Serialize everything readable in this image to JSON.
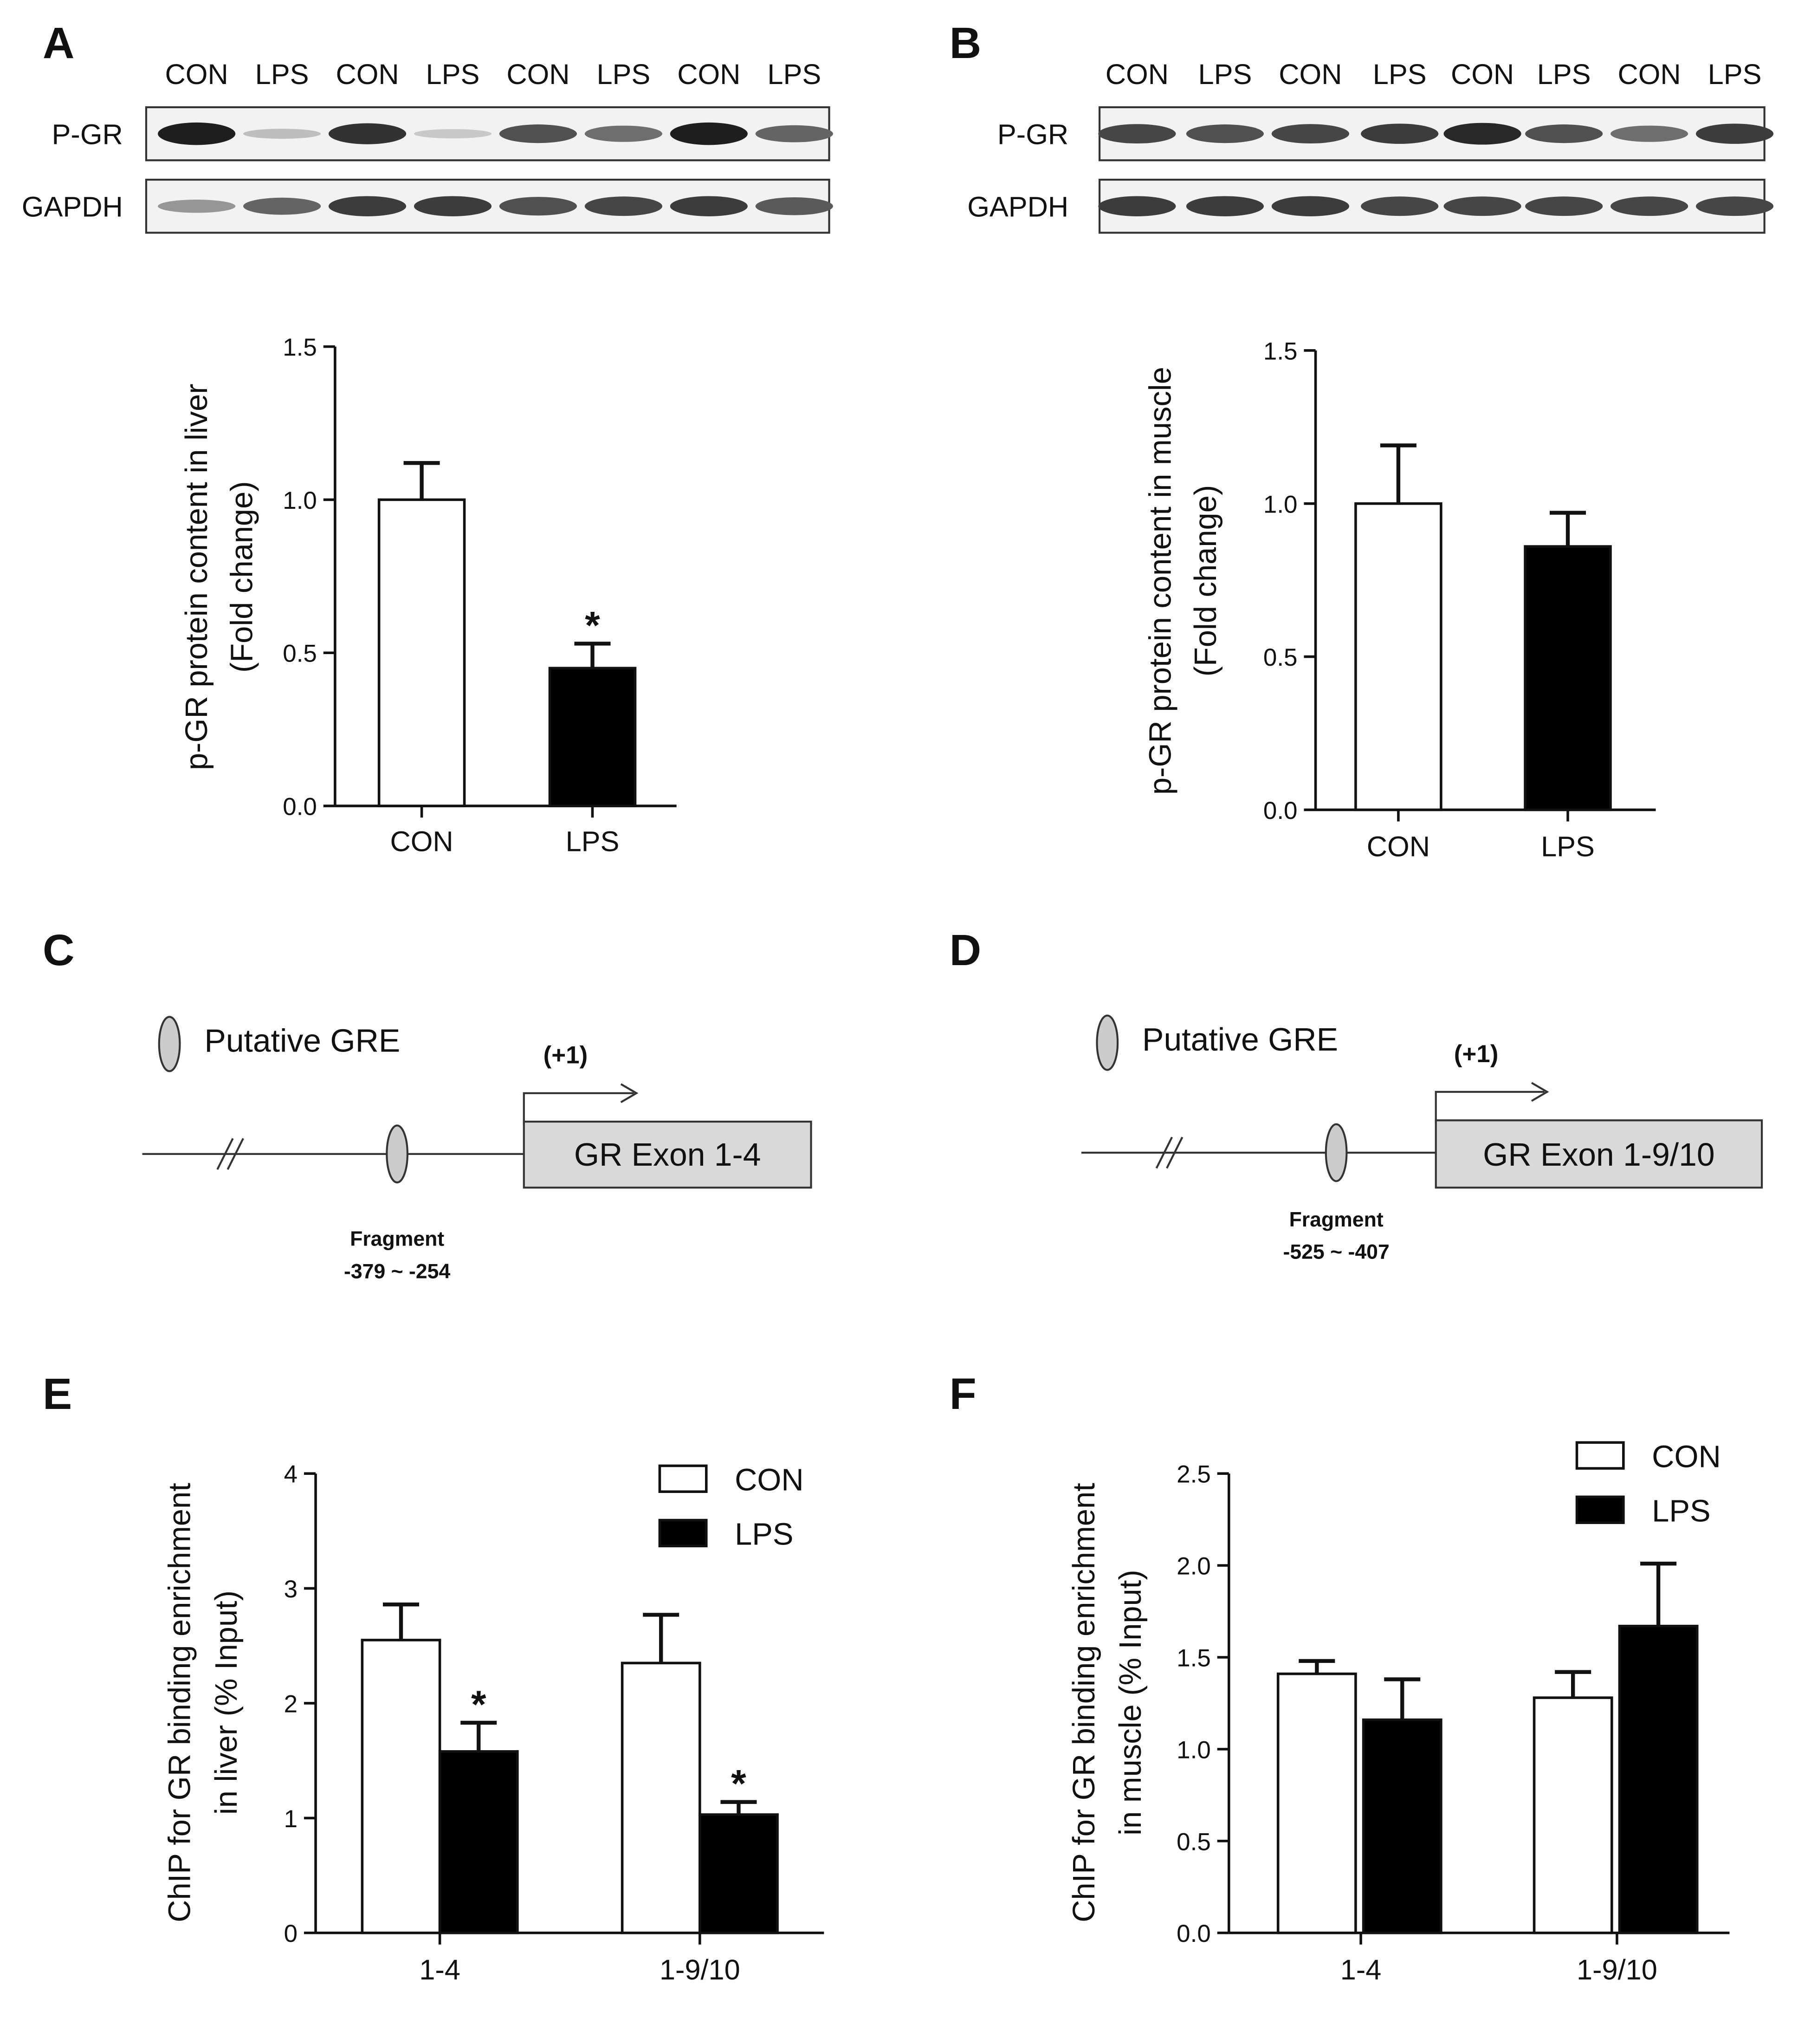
{
  "panels": {
    "A": {
      "label": "A"
    },
    "B": {
      "label": "B"
    },
    "C": {
      "label": "C"
    },
    "D": {
      "label": "D"
    },
    "E": {
      "label": "E"
    },
    "F": {
      "label": "F"
    }
  },
  "blots": [
    {
      "panel": "A",
      "lanes": [
        "CON",
        "LPS",
        "CON",
        "LPS",
        "CON",
        "LPS",
        "CON",
        "LPS"
      ],
      "rows": [
        {
          "label": "P-GR",
          "intensity": [
            0.95,
            0.15,
            0.85,
            0.1,
            0.7,
            0.55,
            0.95,
            0.6
          ]
        },
        {
          "label": "GAPDH",
          "intensity": [
            0.35,
            0.6,
            0.8,
            0.8,
            0.7,
            0.75,
            0.8,
            0.65
          ]
        }
      ]
    },
    {
      "panel": "B",
      "lanes": [
        "CON",
        "LPS",
        "CON",
        "LPS",
        "CON",
        "LPS",
        "CON",
        "LPS"
      ],
      "rows": [
        {
          "label": "P-GR",
          "intensity": [
            0.75,
            0.7,
            0.75,
            0.8,
            0.9,
            0.7,
            0.55,
            0.8
          ]
        },
        {
          "label": "GAPDH",
          "intensity": [
            0.8,
            0.8,
            0.8,
            0.75,
            0.75,
            0.75,
            0.75,
            0.75
          ]
        }
      ]
    }
  ],
  "diagrams": [
    {
      "panel": "C",
      "legend": "Putative GRE",
      "tss": "(+1)",
      "exon": "GR Exon 1-4",
      "fragment_title": "Fragment",
      "fragment_range": "-379 ~ -254"
    },
    {
      "panel": "D",
      "legend": "Putative GRE",
      "tss": "(+1)",
      "exon": "GR Exon 1-9/10",
      "fragment_title": "Fragment",
      "fragment_range": "-525 ~ -407"
    }
  ],
  "chart_data": [
    {
      "panel": "A",
      "type": "bar",
      "categories": [
        "CON",
        "LPS"
      ],
      "values": [
        1.0,
        0.45
      ],
      "errors": [
        0.12,
        0.08
      ],
      "fills": [
        "#ffffff",
        "#000000"
      ],
      "significance": [
        "",
        "*"
      ],
      "ylabel": [
        "p-GR protein content in liver",
        "(Fold change)"
      ],
      "ylim": [
        0,
        1.5
      ],
      "yticks": [
        0.0,
        0.5,
        1.0,
        1.5
      ],
      "tick_decimals": 1
    },
    {
      "panel": "B",
      "type": "bar",
      "categories": [
        "CON",
        "LPS"
      ],
      "values": [
        1.0,
        0.86
      ],
      "errors": [
        0.19,
        0.11
      ],
      "fills": [
        "#ffffff",
        "#000000"
      ],
      "significance": [
        "",
        ""
      ],
      "ylabel": [
        "p-GR protein content in muscle",
        "(Fold change)"
      ],
      "ylim": [
        0,
        1.5
      ],
      "yticks": [
        0.0,
        0.5,
        1.0,
        1.5
      ],
      "tick_decimals": 1
    },
    {
      "panel": "E",
      "type": "bar",
      "categories": [
        "1-4",
        "1-9/10"
      ],
      "series": [
        {
          "name": "CON",
          "values": [
            2.55,
            2.35
          ],
          "errors": [
            0.31,
            0.42
          ],
          "fill": "#ffffff",
          "significance": [
            "",
            ""
          ]
        },
        {
          "name": "LPS",
          "values": [
            1.58,
            1.03
          ],
          "errors": [
            0.25,
            0.11
          ],
          "fill": "#000000",
          "significance": [
            "*",
            "*"
          ]
        }
      ],
      "ylabel": [
        "ChIP for GR binding enrichment",
        "in liver (% Input)"
      ],
      "ylim": [
        0,
        4
      ],
      "yticks": [
        0,
        1,
        2,
        3,
        4
      ],
      "tick_decimals": 0,
      "legend_position": "top-right"
    },
    {
      "panel": "F",
      "type": "bar",
      "categories": [
        "1-4",
        "1-9/10"
      ],
      "series": [
        {
          "name": "CON",
          "values": [
            1.41,
            1.28
          ],
          "errors": [
            0.07,
            0.14
          ],
          "fill": "#ffffff",
          "significance": [
            "",
            ""
          ]
        },
        {
          "name": "LPS",
          "values": [
            1.16,
            1.67
          ],
          "errors": [
            0.22,
            0.34
          ],
          "fill": "#000000",
          "significance": [
            "",
            ""
          ]
        }
      ],
      "ylabel": [
        "ChIP for GR binding enrichment",
        "in muscle (% Input)"
      ],
      "ylim": [
        0,
        2.5
      ],
      "yticks": [
        0.0,
        0.5,
        1.0,
        1.5,
        2.0,
        2.5
      ],
      "tick_decimals": 1,
      "legend_position": "top-right"
    }
  ]
}
